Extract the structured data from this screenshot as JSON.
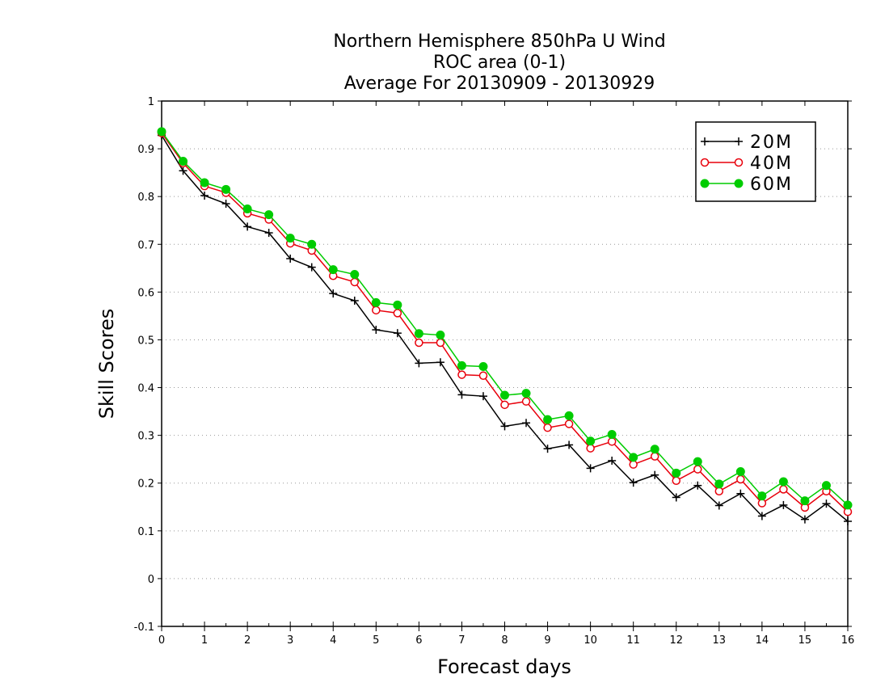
{
  "chart_data": {
    "type": "line",
    "title_lines": [
      "Northern Hemisphere 850hPa U Wind",
      "ROC area (0-1)",
      "Average For 20130909 - 20130929"
    ],
    "xlabel": "Forecast days",
    "ylabel": "Skill Scores",
    "xlim": [
      0,
      16
    ],
    "ylim": [
      -0.1,
      1
    ],
    "x_ticks": [
      0,
      1,
      2,
      3,
      4,
      5,
      6,
      7,
      8,
      9,
      10,
      11,
      12,
      13,
      14,
      15,
      16
    ],
    "y_ticks": [
      -0.1,
      0,
      0.1,
      0.2,
      0.3,
      0.4,
      0.5,
      0.6,
      0.7,
      0.8,
      0.9,
      1
    ],
    "y_tick_labels": [
      "-0.1",
      "0",
      "0.1",
      "0.2",
      "0.3",
      "0.4",
      "0.5",
      "0.6",
      "0.7",
      "0.8",
      "0.9",
      "1"
    ],
    "grid": "horizontal dotted",
    "legend_position": "top-right",
    "x": [
      0,
      0.5,
      1,
      1.5,
      2,
      2.5,
      3,
      3.5,
      4,
      4.5,
      5,
      5.5,
      6,
      6.5,
      7,
      7.5,
      8,
      8.5,
      9,
      9.5,
      10,
      10.5,
      11,
      11.5,
      12,
      12.5,
      13,
      13.5,
      14,
      14.5,
      15,
      15.5,
      16
    ],
    "series": [
      {
        "name": "20M",
        "color": "#000000",
        "marker": "plus",
        "values": [
          0.928,
          0.854,
          0.802,
          0.785,
          0.737,
          0.724,
          0.67,
          0.652,
          0.597,
          0.582,
          0.521,
          0.514,
          0.451,
          0.453,
          0.385,
          0.382,
          0.319,
          0.326,
          0.272,
          0.28,
          0.231,
          0.247,
          0.201,
          0.217,
          0.17,
          0.195,
          0.153,
          0.178,
          0.131,
          0.154,
          0.124,
          0.157,
          0.12
        ]
      },
      {
        "name": "40M",
        "color": "#e8000b",
        "marker": "open-circle",
        "values": [
          0.933,
          0.87,
          0.822,
          0.808,
          0.765,
          0.752,
          0.702,
          0.687,
          0.634,
          0.621,
          0.562,
          0.556,
          0.494,
          0.494,
          0.427,
          0.425,
          0.364,
          0.371,
          0.316,
          0.324,
          0.273,
          0.287,
          0.239,
          0.256,
          0.205,
          0.229,
          0.183,
          0.208,
          0.158,
          0.187,
          0.149,
          0.183,
          0.14
        ]
      },
      {
        "name": "60M",
        "color": "#00cc00",
        "marker": "filled-circle",
        "values": [
          0.936,
          0.874,
          0.829,
          0.815,
          0.774,
          0.762,
          0.713,
          0.7,
          0.647,
          0.637,
          0.578,
          0.573,
          0.513,
          0.51,
          0.446,
          0.444,
          0.384,
          0.388,
          0.333,
          0.341,
          0.288,
          0.302,
          0.254,
          0.271,
          0.221,
          0.245,
          0.198,
          0.224,
          0.173,
          0.203,
          0.163,
          0.195,
          0.154
        ]
      }
    ]
  }
}
